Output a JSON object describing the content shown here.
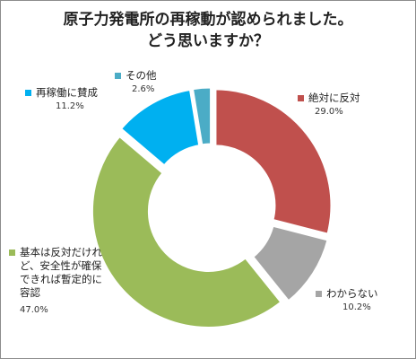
{
  "chart_data": {
    "type": "pie",
    "title": [
      "原子力発電所の再稼動が認められました。",
      "どう思いますか？"
    ],
    "categories": [
      "絶対に反対",
      "わからない",
      "基本は反対だけれど、安全性が確保できれば暫定的に容認",
      "再稼働に賛成",
      "その他"
    ],
    "values": [
      29.0,
      10.2,
      47.0,
      11.2,
      2.6
    ],
    "labels": [
      "29.0%",
      "10.2%",
      "47.0%",
      "11.2%",
      "2.6%"
    ],
    "colors": [
      "#c0504d",
      "#a5a5a5",
      "#9bbb59",
      "#00b0f0",
      "#4bacc6"
    ],
    "style": "donut",
    "legend": "data labels around chart"
  }
}
